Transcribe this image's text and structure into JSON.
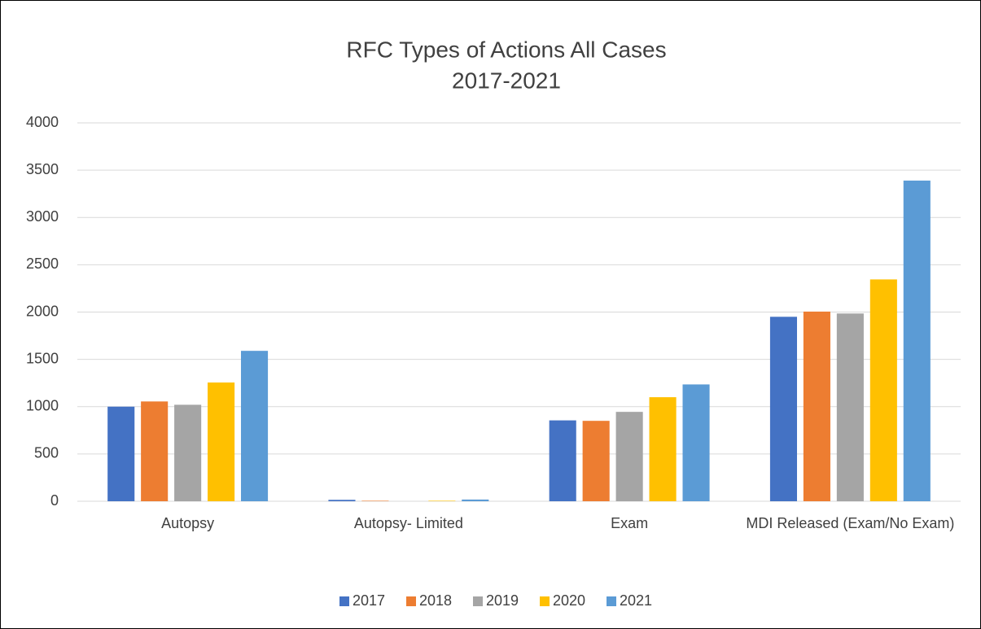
{
  "chart_data": {
    "type": "bar",
    "title": [
      "RFC Types of Actions All Cases",
      "2017-2021"
    ],
    "categories": [
      "Autopsy",
      "Autopsy- Limited",
      "Exam",
      "MDI Released (Exam/No Exam)"
    ],
    "series": [
      {
        "name": "2017",
        "color": "#4472c4",
        "values": [
          1000,
          15,
          855,
          1950
        ]
      },
      {
        "name": "2018",
        "color": "#ed7d31",
        "values": [
          1055,
          5,
          850,
          2005
        ]
      },
      {
        "name": "2019",
        "color": "#a5a5a5",
        "values": [
          1020,
          0,
          945,
          1985
        ]
      },
      {
        "name": "2020",
        "color": "#ffc000",
        "values": [
          1255,
          5,
          1100,
          2345
        ]
      },
      {
        "name": "2021",
        "color": "#5b9bd5",
        "values": [
          1590,
          18,
          1235,
          3390
        ]
      }
    ],
    "ylim": [
      0,
      4000
    ],
    "yticks": [
      0,
      500,
      1000,
      1500,
      2000,
      2500,
      3000,
      3500,
      4000
    ],
    "grid": true,
    "legend": "bottom"
  }
}
